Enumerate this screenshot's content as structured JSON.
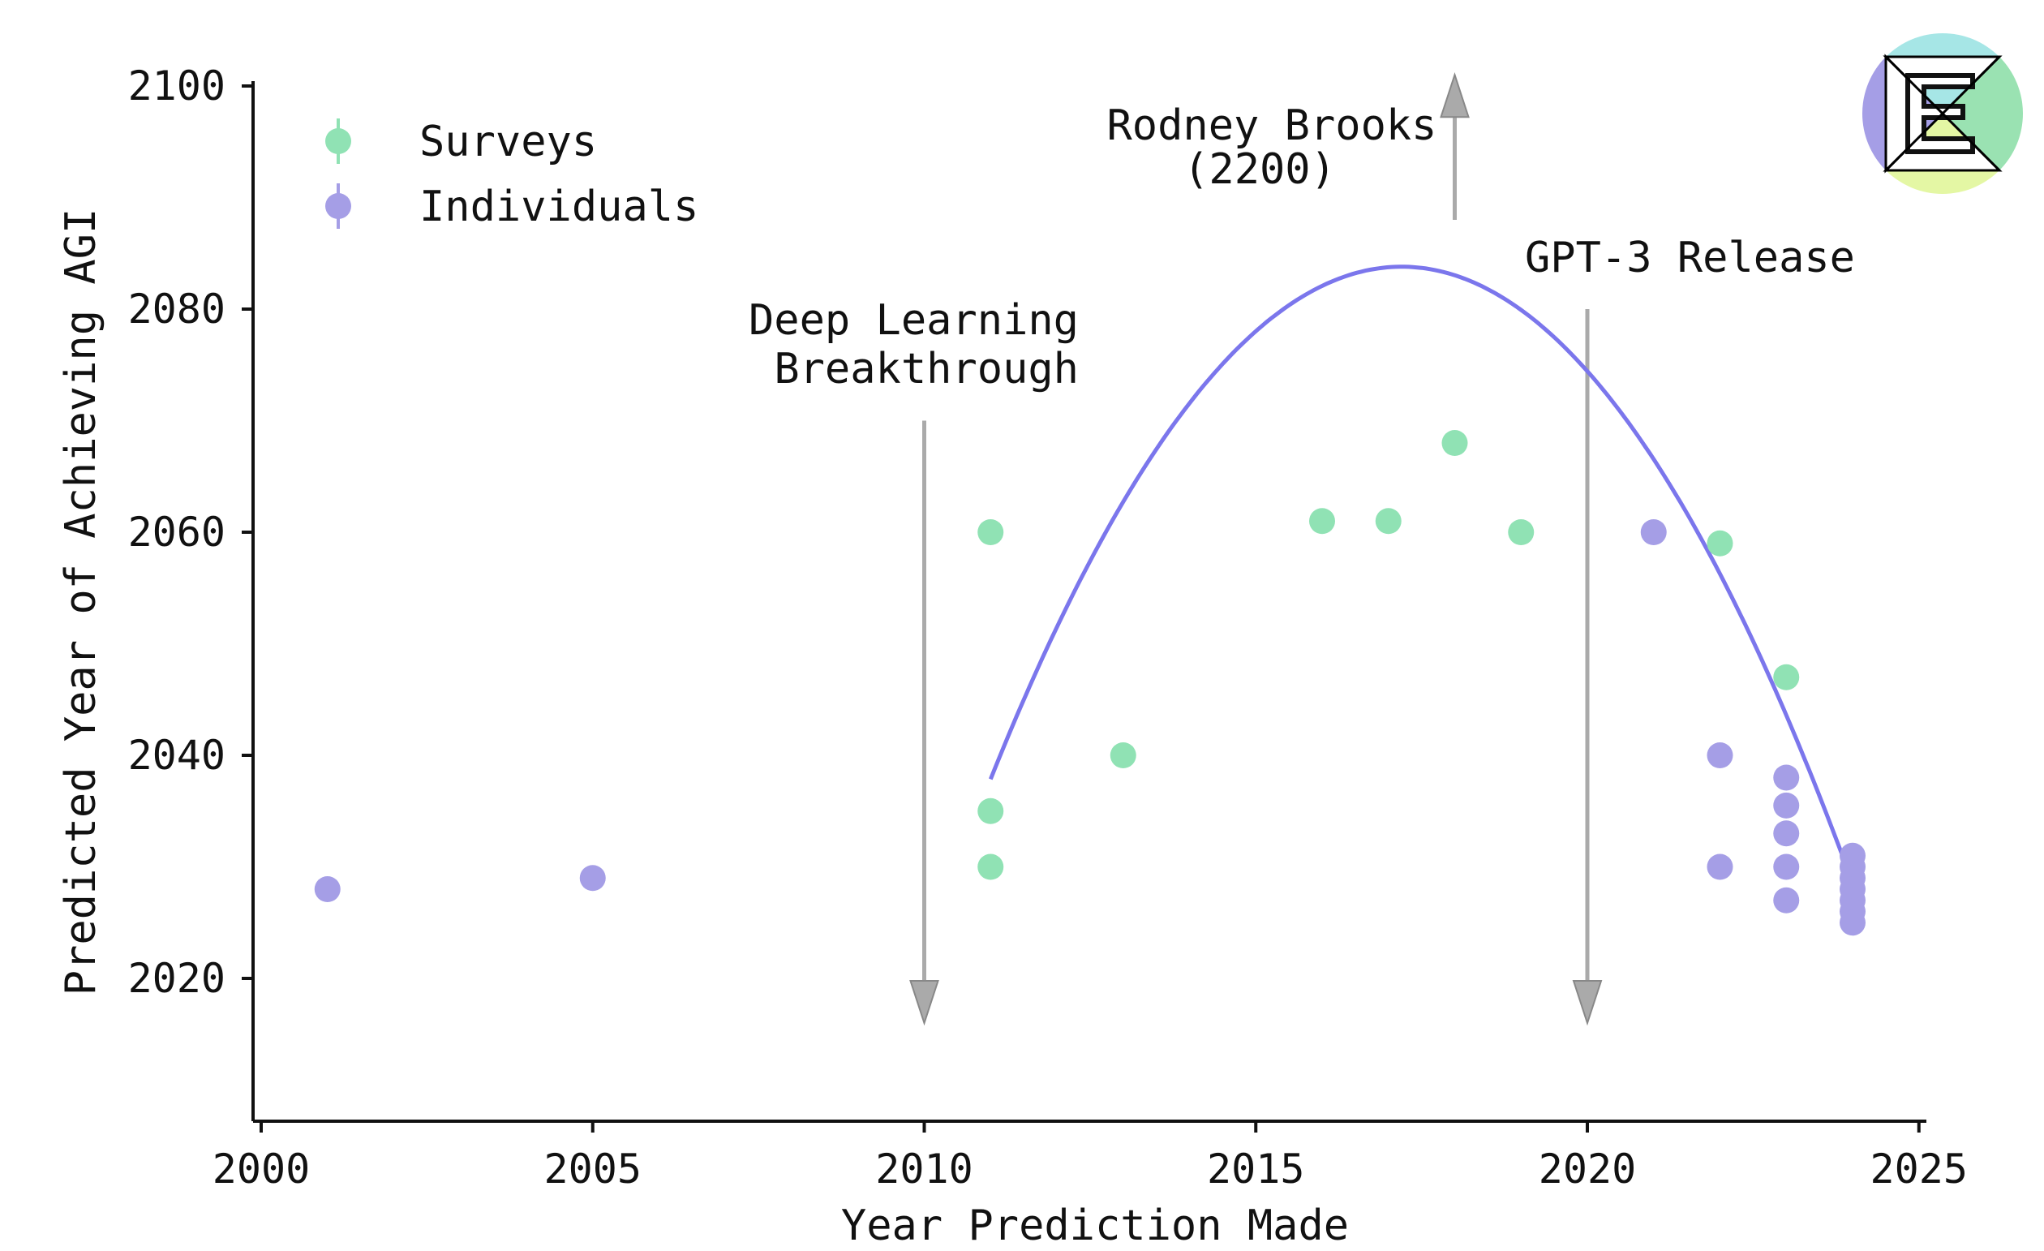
{
  "colors": {
    "surveys": "#90e2b4",
    "individuals": "#a59ee6",
    "fit_line": "#7b76ec",
    "arrow": "#aaaaaa",
    "arrow_stroke": "#888888",
    "text": "#111111",
    "logo_top": "#a6e6e6",
    "logo_right": "#9ae2b2",
    "logo_bottom": "#e4f7a4",
    "logo_left": "#a59ee6"
  },
  "logo": {
    "icon": "epoch-e-logo-icon"
  },
  "chart_data": {
    "type": "scatter",
    "xlabel": "Year Prediction Made",
    "ylabel": "Predicted Year of Achieving AGI",
    "xlim": [
      2000,
      2025
    ],
    "ylim": [
      2007,
      2100
    ],
    "xticks": [
      2000,
      2005,
      2010,
      2015,
      2020,
      2025
    ],
    "yticks": [
      2020,
      2040,
      2060,
      2080,
      2100
    ],
    "xtick_labels": [
      "2000",
      "2005",
      "2010",
      "2015",
      "2020",
      "2025"
    ],
    "ytick_labels": [
      "2020",
      "2040",
      "2060",
      "2080",
      "2100"
    ],
    "legend_position": "top-left",
    "legend": [
      {
        "key": "surveys",
        "label": "Surveys"
      },
      {
        "key": "individuals",
        "label": "Individuals"
      }
    ],
    "series": [
      {
        "name": "Surveys",
        "key": "surveys",
        "points": [
          [
            2011,
            2060
          ],
          [
            2011,
            2035
          ],
          [
            2011,
            2030
          ],
          [
            2013,
            2040
          ],
          [
            2016,
            2061
          ],
          [
            2017,
            2061
          ],
          [
            2018,
            2068
          ],
          [
            2019,
            2060
          ],
          [
            2022,
            2059
          ],
          [
            2023,
            2047
          ]
        ]
      },
      {
        "name": "Individuals",
        "key": "individuals",
        "points": [
          [
            2001,
            2028
          ],
          [
            2005,
            2029
          ],
          [
            2021,
            2060
          ],
          [
            2022,
            2040
          ],
          [
            2022,
            2030
          ],
          [
            2023,
            2038
          ],
          [
            2023,
            2035.5
          ],
          [
            2023,
            2033
          ],
          [
            2023,
            2030
          ],
          [
            2023,
            2027
          ],
          [
            2024,
            2031
          ],
          [
            2024,
            2030
          ],
          [
            2024,
            2029
          ],
          [
            2024,
            2028
          ],
          [
            2024,
            2027
          ],
          [
            2024,
            2026
          ],
          [
            2024,
            2025
          ]
        ]
      }
    ],
    "trend_line": {
      "type": "quadratic",
      "vertex_x": 2017.2,
      "vertex_y": 2083.8,
      "a": -1.195,
      "x_range": [
        2011,
        2024
      ]
    },
    "annotations": [
      {
        "key": "deep_learning",
        "lines": [
          "Deep Learning",
          "Breakthrough"
        ],
        "x": 2010,
        "arrow_from_y": 2070,
        "arrow_to_y": 2016,
        "direction": "down"
      },
      {
        "key": "gpt3",
        "lines": [
          "GPT-3 Release"
        ],
        "x": 2020,
        "arrow_from_y": 2080,
        "arrow_to_y": 2016,
        "direction": "down"
      },
      {
        "key": "rodney_brooks",
        "lines": [
          "Rodney Brooks",
          "(2200)"
        ],
        "x": 2018,
        "arrow_from_y": 2088,
        "arrow_to_y": 2101,
        "direction": "up"
      }
    ]
  }
}
